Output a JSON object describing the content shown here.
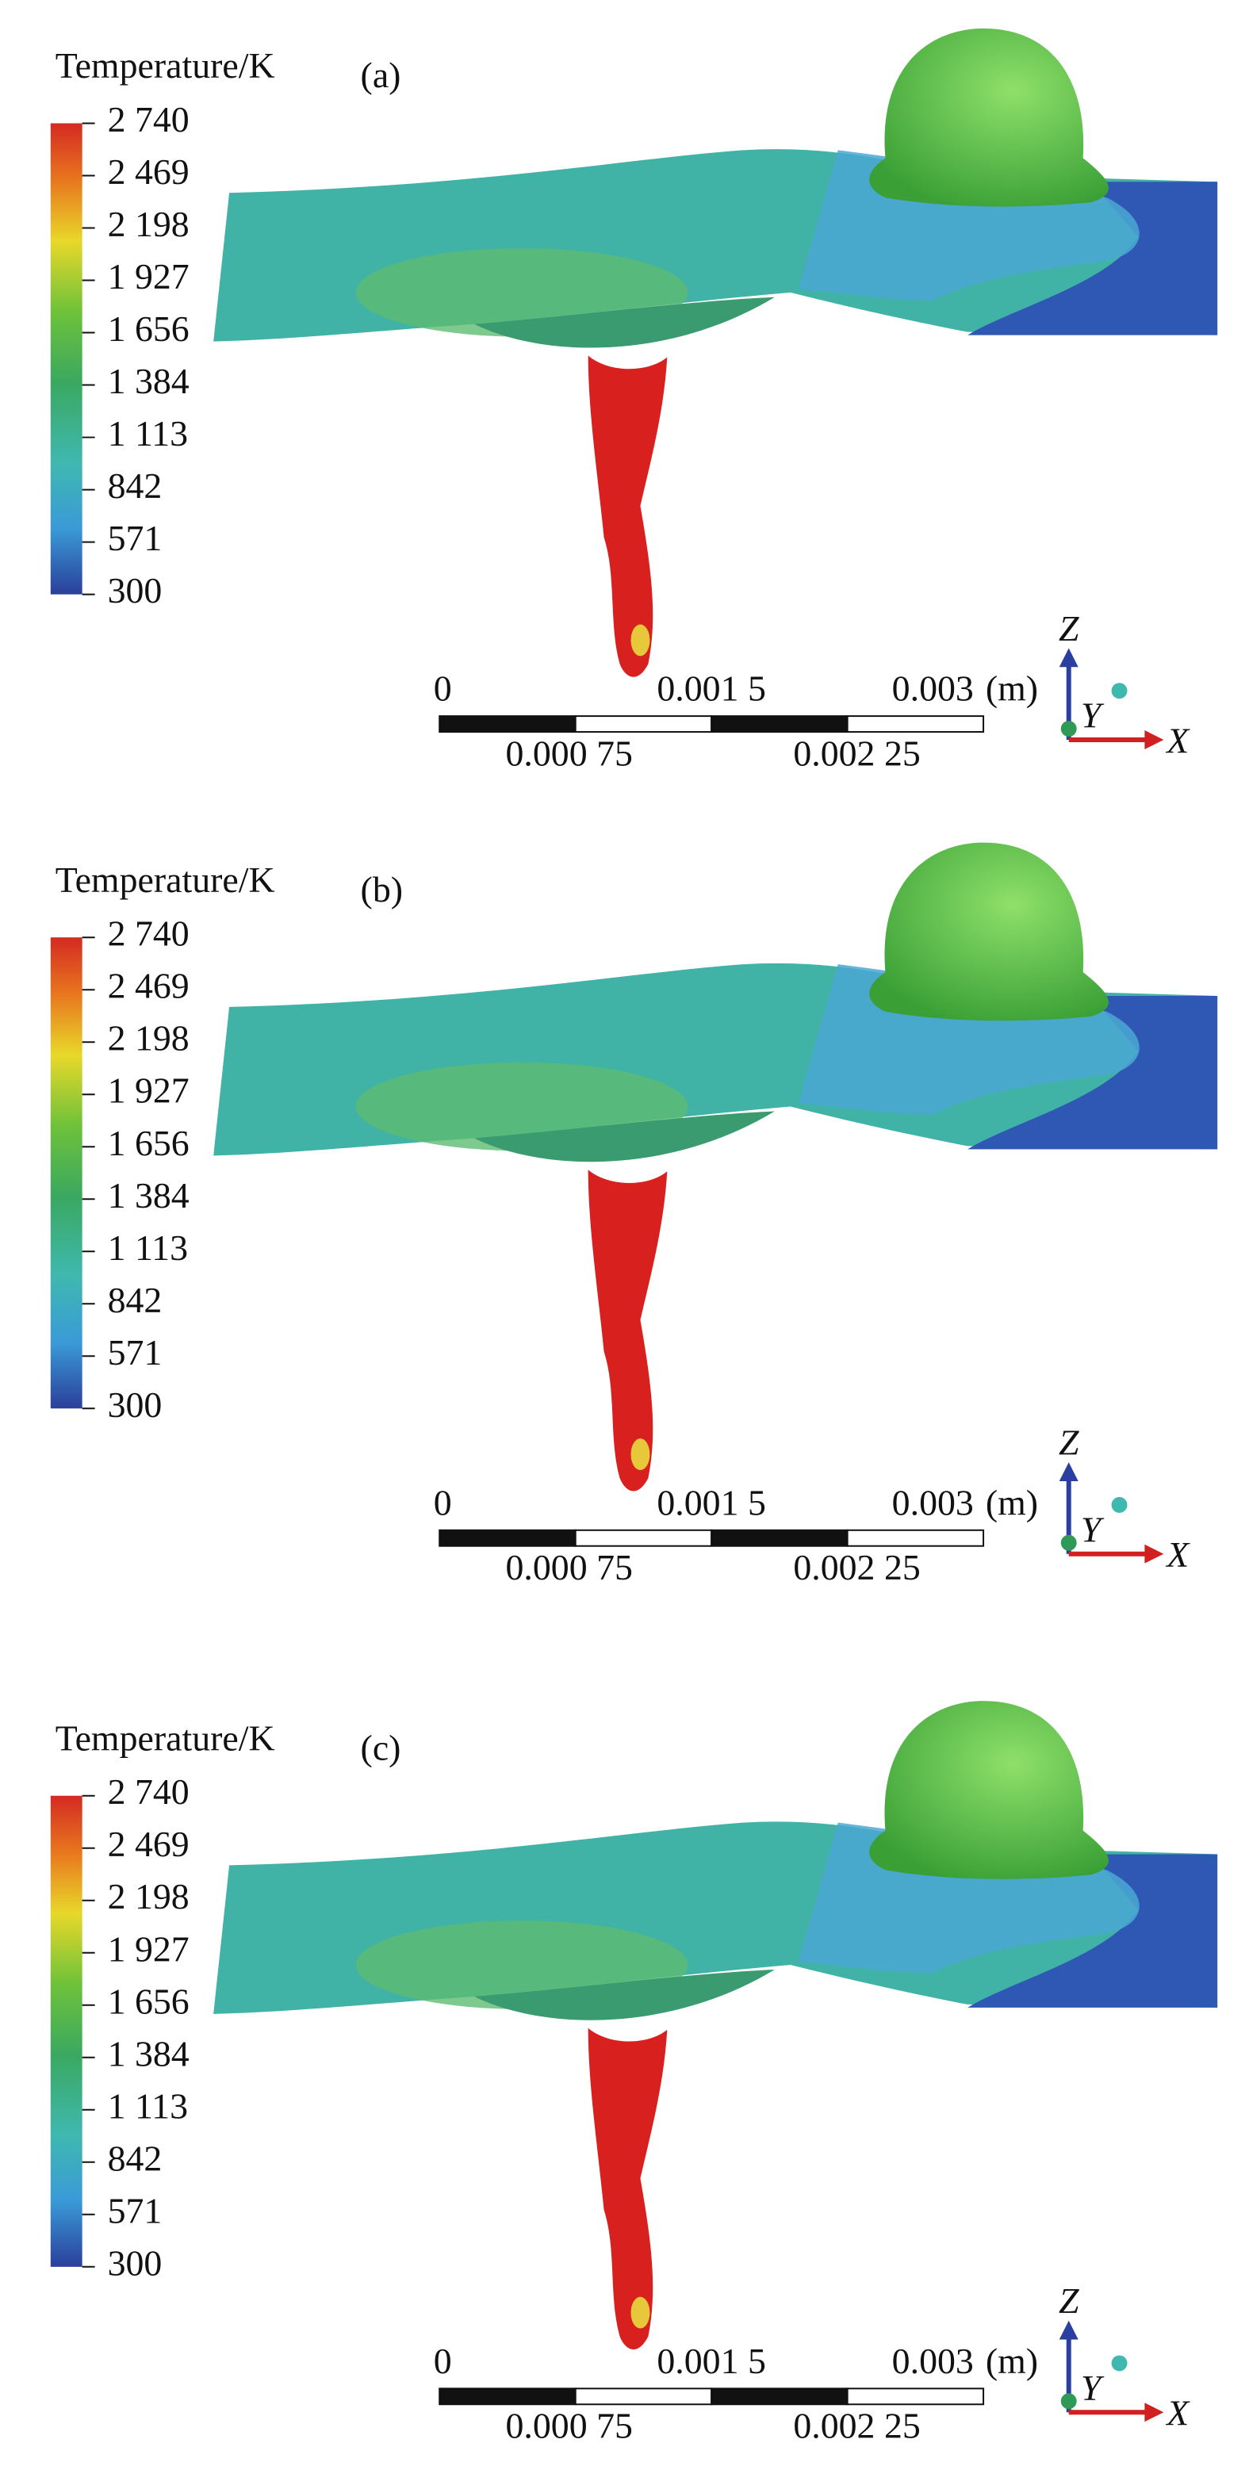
{
  "panels": [
    {
      "label": "(a)",
      "legend_title": "Temperature/K",
      "legend_ticks": [
        "2 740",
        "2 469",
        "2 198",
        "1 927",
        "1 656",
        "1 384",
        "1 113",
        "842",
        "571",
        "300"
      ],
      "scale_bar": {
        "ticks_top": [
          "0",
          "0.001 5",
          "0.003"
        ],
        "unit": "(m)",
        "ticks_bottom": [
          "0.000 75",
          "0.002 25"
        ]
      },
      "axes": {
        "z": "Z",
        "y": "Y",
        "x": "X"
      }
    },
    {
      "label": "(b)",
      "legend_title": "Temperature/K",
      "legend_ticks": [
        "2 740",
        "2 469",
        "2 198",
        "1 927",
        "1 656",
        "1 384",
        "1 113",
        "842",
        "571",
        "300"
      ],
      "scale_bar": {
        "ticks_top": [
          "0",
          "0.001 5",
          "0.003"
        ],
        "unit": "(m)",
        "ticks_bottom": [
          "0.000 75",
          "0.002 25"
        ]
      },
      "axes": {
        "z": "Z",
        "y": "Y",
        "x": "X"
      }
    },
    {
      "label": "(c)",
      "legend_title": "Temperature/K",
      "legend_ticks": [
        "2 740",
        "2 469",
        "2 198",
        "1 927",
        "1 656",
        "1 384",
        "1 113",
        "842",
        "571",
        "300"
      ],
      "scale_bar": {
        "ticks_top": [
          "0",
          "0.001 5",
          "0.003"
        ],
        "unit": "(m)",
        "ticks_bottom": [
          "0.000 75",
          "0.002 25"
        ]
      },
      "axes": {
        "z": "Z",
        "y": "Y",
        "x": "X"
      }
    }
  ]
}
